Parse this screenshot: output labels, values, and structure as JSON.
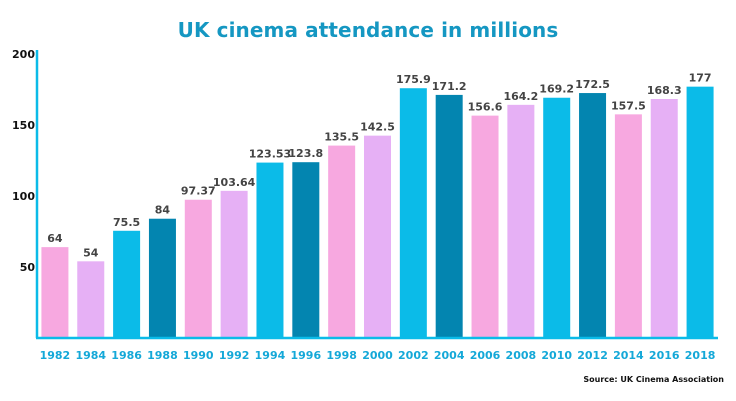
{
  "chart_data": {
    "type": "bar",
    "title": "UK cinema attendance in millions",
    "source": "Source: UK Cinema Association",
    "xlabel": "",
    "ylabel": "",
    "ylim": [
      0,
      200
    ],
    "yticks": [
      50,
      100,
      150,
      200
    ],
    "grid": false,
    "legend": "none",
    "categories": [
      "1982",
      "1984",
      "1986",
      "1988",
      "1990",
      "1992",
      "1994",
      "1996",
      "1998",
      "2000",
      "2002",
      "2004",
      "2006",
      "2008",
      "2010",
      "2012",
      "2014",
      "2016",
      "2018"
    ],
    "values": [
      64,
      54,
      75.5,
      84,
      97.37,
      103.64,
      123.53,
      123.8,
      135.5,
      142.5,
      175.9,
      171.2,
      156.6,
      164.2,
      169.2,
      172.5,
      157.5,
      168.3,
      177
    ],
    "value_labels": [
      "64",
      "54",
      "75.5",
      "84",
      "97.37",
      "103.64",
      "123.53",
      "123.8",
      "135.5",
      "142.5",
      "175.9",
      "171.2",
      "156.6",
      "164.2",
      "169.2",
      "172.5",
      "157.5",
      "168.3",
      "177"
    ],
    "bar_colors": [
      "#f7a8e0",
      "#e6b0f5",
      "#0bbbe8",
      "#0385b0",
      "#f7a8e0",
      "#e6b0f5",
      "#0bbbe8",
      "#0385b0",
      "#f7a8e0",
      "#e6b0f5",
      "#0bbbe8",
      "#0385b0",
      "#f7a8e0",
      "#e6b0f5",
      "#0bbbe8",
      "#0385b0",
      "#f7a8e0",
      "#e6b0f5",
      "#0bbbe8"
    ],
    "title_color": "#1597c2",
    "tick_label_color": "#14a8d8",
    "axis_color": "#0bbbe8"
  }
}
